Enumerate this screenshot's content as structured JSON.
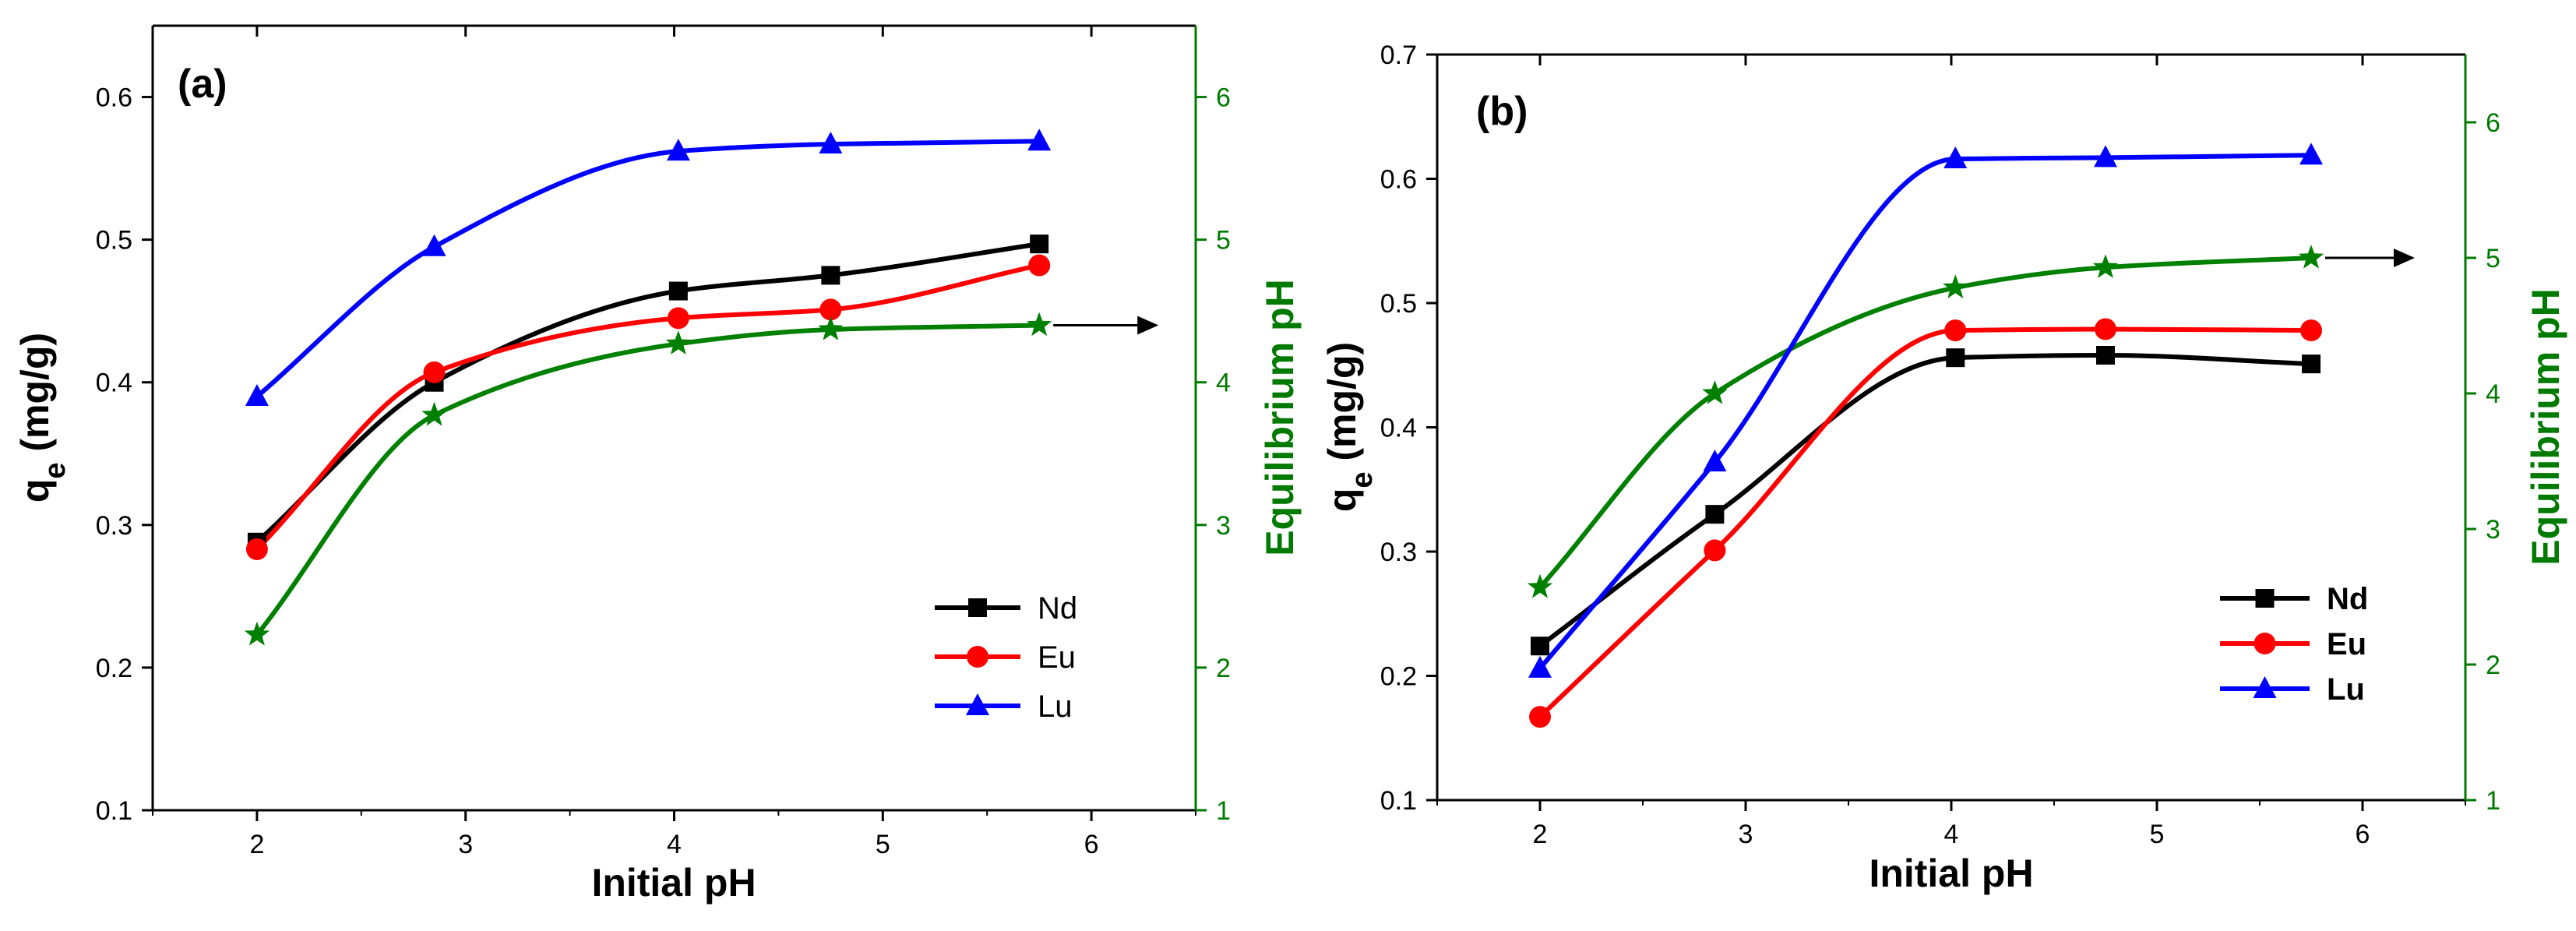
{
  "colors": {
    "Nd": "#000000",
    "Eu": "#ff0000",
    "Lu": "#0000ff",
    "eq": "#008000",
    "eq_axis": "#007a00"
  },
  "chart_data": [
    {
      "type": "scatter",
      "panel_label": "(a)",
      "xlabel": "Initial pH",
      "ylabel": "q",
      "ylabel_sub": "e",
      "ylabel_unit": " (mg/g)",
      "y2label": "Equilibrium pH",
      "xlim": [
        1.5,
        6.5
      ],
      "ylim": [
        0.1,
        0.65
      ],
      "y2lim": [
        1,
        6.5
      ],
      "xticks": [
        2,
        3,
        4,
        5,
        6
      ],
      "yticks": [
        0.1,
        0.2,
        0.3,
        0.4,
        0.5,
        0.6
      ],
      "y2ticks": [
        1,
        2,
        3,
        4,
        5,
        6
      ],
      "legend_bold": false,
      "legend_position": "bottom-right",
      "series": [
        {
          "name": "Nd",
          "marker": "square",
          "x": [
            2.0,
            2.85,
            4.02,
            4.75,
            5.75
          ],
          "y": [
            0.288,
            0.4,
            0.464,
            0.475,
            0.497
          ]
        },
        {
          "name": "Eu",
          "marker": "circle",
          "x": [
            2.0,
            2.85,
            4.02,
            4.75,
            5.75
          ],
          "y": [
            0.283,
            0.407,
            0.445,
            0.451,
            0.482
          ]
        },
        {
          "name": "Lu",
          "marker": "triangle",
          "x": [
            2.0,
            2.85,
            4.02,
            4.75,
            5.75
          ],
          "y": [
            0.39,
            0.495,
            0.562,
            0.567,
            0.569
          ]
        }
      ],
      "eq_series": {
        "marker": "star",
        "axis": "right",
        "x": [
          2.0,
          2.85,
          4.02,
          4.75,
          5.75
        ],
        "y": [
          2.23,
          3.77,
          4.27,
          4.37,
          4.4
        ]
      }
    },
    {
      "type": "scatter",
      "panel_label": "(b)",
      "xlabel": "Initial pH",
      "ylabel": "q",
      "ylabel_sub": "e",
      "ylabel_unit": " (mg/g)",
      "y2label": "Equilibrium pH",
      "xlim": [
        1.5,
        6.5
      ],
      "ylim": [
        0.1,
        0.7
      ],
      "y2lim": [
        1,
        6.5
      ],
      "xticks": [
        2,
        3,
        4,
        5,
        6
      ],
      "yticks": [
        0.1,
        0.2,
        0.3,
        0.4,
        0.5,
        0.6,
        0.7
      ],
      "y2ticks": [
        1,
        2,
        3,
        4,
        5,
        6
      ],
      "legend_bold": true,
      "legend_position": "bottom-right",
      "series": [
        {
          "name": "Nd",
          "marker": "square",
          "x": [
            2.0,
            2.85,
            4.02,
            4.75,
            5.75
          ],
          "y": [
            0.224,
            0.33,
            0.456,
            0.458,
            0.451
          ]
        },
        {
          "name": "Eu",
          "marker": "circle",
          "x": [
            2.0,
            2.85,
            4.02,
            4.75,
            5.75
          ],
          "y": [
            0.167,
            0.301,
            0.478,
            0.479,
            0.478
          ]
        },
        {
          "name": "Lu",
          "marker": "triangle",
          "x": [
            2.0,
            2.85,
            4.02,
            4.75,
            5.75
          ],
          "y": [
            0.206,
            0.372,
            0.616,
            0.617,
            0.619
          ]
        }
      ],
      "eq_series": {
        "marker": "star",
        "axis": "right",
        "x": [
          2.0,
          2.85,
          4.02,
          4.75,
          5.75
        ],
        "y": [
          2.57,
          4.0,
          4.78,
          4.93,
          5.0
        ]
      }
    }
  ]
}
